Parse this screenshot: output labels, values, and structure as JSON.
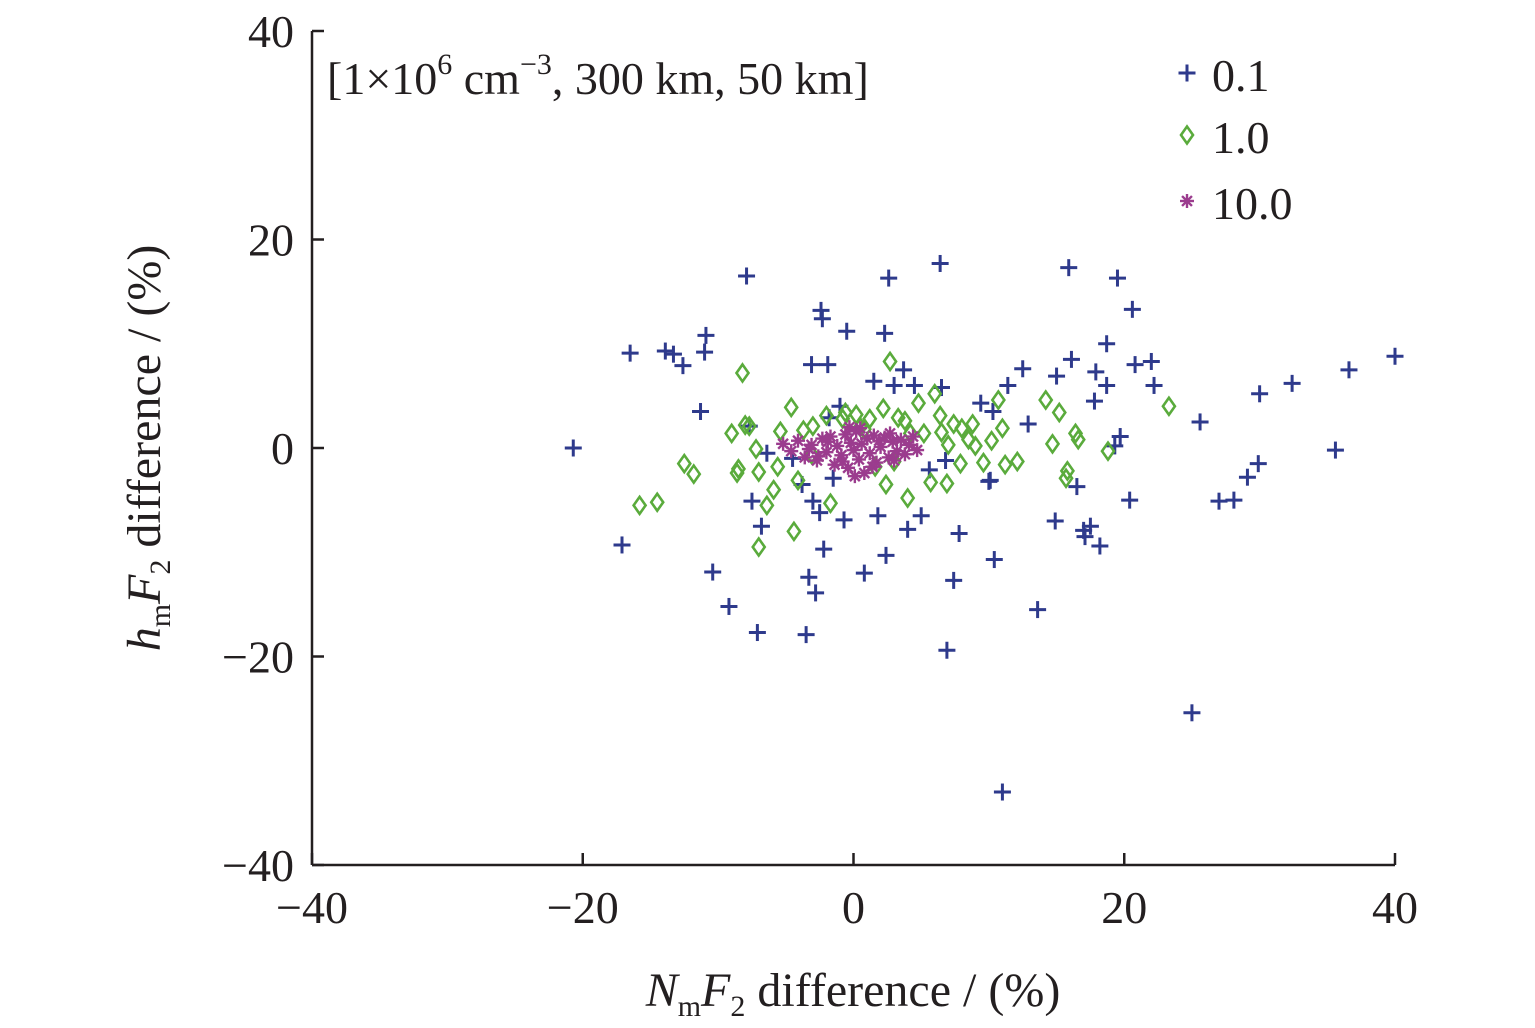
{
  "chart_data": {
    "type": "scatter",
    "annotation": {
      "prefix": "[1×10",
      "sup1": "6",
      "mid": " cm",
      "sup2": "−3",
      "suffix": ", 300 km, 50 km]"
    },
    "xlabel": {
      "N": "N",
      "m": "m",
      "F": "F",
      "sub": "2",
      "rest": " difference / (%)"
    },
    "ylabel": {
      "h": "h",
      "m": "m",
      "F": "F",
      "sub": "2",
      "rest": " difference / (%)"
    },
    "xlim": [
      -40,
      40
    ],
    "ylim": [
      -40,
      40
    ],
    "xticks": [
      -40,
      -20,
      0,
      20,
      40
    ],
    "yticks": [
      -40,
      -20,
      0,
      20,
      40
    ],
    "xtick_labels": [
      "−40",
      "−20",
      "0",
      "20",
      "40"
    ],
    "ytick_labels": [
      "−40",
      "−20",
      "0",
      "20",
      "40"
    ],
    "grid": false,
    "legend_position": "top-right",
    "series": [
      {
        "name": "0.1",
        "marker": "plus",
        "color": "#2e3a8c",
        "points": [
          [
            -20.7,
            0.0
          ],
          [
            -17.1,
            -9.3
          ],
          [
            -16.5,
            9.1
          ],
          [
            -13.9,
            9.3
          ],
          [
            -13.3,
            9.0
          ],
          [
            -12.6,
            7.9
          ],
          [
            -11.3,
            3.5
          ],
          [
            -11.0,
            9.2
          ],
          [
            -10.9,
            10.8
          ],
          [
            -10.4,
            -11.9
          ],
          [
            -9.2,
            -15.2
          ],
          [
            -7.9,
            16.5
          ],
          [
            -7.7,
            2.1
          ],
          [
            -7.5,
            -5.1
          ],
          [
            -7.1,
            -17.7
          ],
          [
            -6.8,
            -7.5
          ],
          [
            -6.4,
            -0.5
          ],
          [
            -4.5,
            -1.0
          ],
          [
            -3.8,
            -3.5
          ],
          [
            -3.5,
            -17.9
          ],
          [
            -3.3,
            -12.4
          ],
          [
            -3.1,
            8.0
          ],
          [
            -3.0,
            -5.1
          ],
          [
            -2.8,
            -13.9
          ],
          [
            -2.5,
            -6.2
          ],
          [
            -2.4,
            13.2
          ],
          [
            -2.3,
            12.4
          ],
          [
            -2.2,
            -9.7
          ],
          [
            -1.9,
            8.0
          ],
          [
            -1.8,
            2.9
          ],
          [
            -1.5,
            -2.9
          ],
          [
            -1.0,
            4.0
          ],
          [
            -0.7,
            -6.9
          ],
          [
            -0.5,
            11.2
          ],
          [
            0.8,
            -12.0
          ],
          [
            1.5,
            6.4
          ],
          [
            1.8,
            -6.5
          ],
          [
            2.3,
            11.0
          ],
          [
            2.4,
            -10.3
          ],
          [
            2.6,
            16.3
          ],
          [
            3.0,
            6.0
          ],
          [
            3.7,
            7.5
          ],
          [
            4.0,
            -7.8
          ],
          [
            4.5,
            6.0
          ],
          [
            5.0,
            -6.5
          ],
          [
            5.6,
            -2.1
          ],
          [
            6.4,
            17.7
          ],
          [
            6.5,
            5.8
          ],
          [
            6.8,
            -1.2
          ],
          [
            6.9,
            -19.4
          ],
          [
            7.4,
            -12.7
          ],
          [
            7.8,
            -8.2
          ],
          [
            9.4,
            4.3
          ],
          [
            10.0,
            -3.2
          ],
          [
            10.1,
            -3.1
          ],
          [
            10.3,
            3.5
          ],
          [
            10.4,
            -10.7
          ],
          [
            11.0,
            -33.0
          ],
          [
            11.4,
            6.0
          ],
          [
            12.5,
            7.6
          ],
          [
            12.9,
            2.3
          ],
          [
            13.6,
            -15.5
          ],
          [
            14.9,
            -7.0
          ],
          [
            15.0,
            6.9
          ],
          [
            15.9,
            17.3
          ],
          [
            16.1,
            8.5
          ],
          [
            16.5,
            -3.7
          ],
          [
            17.0,
            -7.9
          ],
          [
            17.1,
            -8.5
          ],
          [
            17.5,
            -7.5
          ],
          [
            17.8,
            4.5
          ],
          [
            17.9,
            7.3
          ],
          [
            18.2,
            -9.4
          ],
          [
            18.7,
            10.0
          ],
          [
            18.7,
            6.0
          ],
          [
            19.3,
            0.2
          ],
          [
            19.5,
            16.3
          ],
          [
            19.7,
            1.1
          ],
          [
            20.4,
            -5.0
          ],
          [
            20.6,
            13.3
          ],
          [
            20.8,
            8.0
          ],
          [
            22.0,
            8.3
          ],
          [
            22.2,
            6.0
          ],
          [
            25.0,
            -25.4
          ],
          [
            25.6,
            2.5
          ],
          [
            27.0,
            -5.1
          ],
          [
            28.1,
            -5.0
          ],
          [
            29.1,
            -2.8
          ],
          [
            29.9,
            -1.5
          ],
          [
            30.0,
            5.2
          ],
          [
            32.4,
            6.2
          ],
          [
            35.6,
            -0.2
          ],
          [
            36.6,
            7.5
          ],
          [
            40.0,
            8.8
          ]
        ]
      },
      {
        "name": "1.0",
        "marker": "diamond",
        "color": "#5aab3c",
        "points": [
          [
            -15.8,
            -5.5
          ],
          [
            -14.5,
            -5.2
          ],
          [
            -12.5,
            -1.5
          ],
          [
            -11.8,
            -2.5
          ],
          [
            -9.0,
            1.4
          ],
          [
            -8.6,
            -2.4
          ],
          [
            -8.5,
            -2.0
          ],
          [
            -8.2,
            7.2
          ],
          [
            -8.0,
            2.2
          ],
          [
            -7.7,
            2.1
          ],
          [
            -7.2,
            -0.1
          ],
          [
            -7.0,
            -2.3
          ],
          [
            -7.0,
            -9.5
          ],
          [
            -6.4,
            -5.5
          ],
          [
            -5.9,
            -4.0
          ],
          [
            -5.6,
            -1.8
          ],
          [
            -5.4,
            1.6
          ],
          [
            -4.6,
            3.9
          ],
          [
            -4.4,
            -8.0
          ],
          [
            -4.1,
            -3.1
          ],
          [
            -3.7,
            1.7
          ],
          [
            -3.1,
            -0.6
          ],
          [
            -3.0,
            2.1
          ],
          [
            -2.0,
            3.1
          ],
          [
            -1.7,
            -5.3
          ],
          [
            -0.8,
            2.8
          ],
          [
            -0.6,
            3.4
          ],
          [
            0.2,
            3.2
          ],
          [
            0.5,
            2.0
          ],
          [
            0.8,
            1.8
          ],
          [
            1.2,
            2.8
          ],
          [
            1.6,
            -1.8
          ],
          [
            2.2,
            3.8
          ],
          [
            2.4,
            -3.5
          ],
          [
            2.7,
            8.3
          ],
          [
            3.0,
            -1.3
          ],
          [
            3.3,
            2.9
          ],
          [
            3.8,
            2.6
          ],
          [
            4.0,
            -4.8
          ],
          [
            4.2,
            1.4
          ],
          [
            4.8,
            4.3
          ],
          [
            5.2,
            1.4
          ],
          [
            5.7,
            -3.3
          ],
          [
            6.0,
            5.2
          ],
          [
            6.4,
            3.1
          ],
          [
            6.5,
            1.5
          ],
          [
            6.9,
            -3.4
          ],
          [
            7.0,
            0.3
          ],
          [
            7.4,
            2.3
          ],
          [
            7.9,
            -1.5
          ],
          [
            8.0,
            1.9
          ],
          [
            8.5,
            0.8
          ],
          [
            8.8,
            2.3
          ],
          [
            9.0,
            0.2
          ],
          [
            9.6,
            -1.4
          ],
          [
            10.2,
            0.7
          ],
          [
            10.7,
            4.6
          ],
          [
            11.0,
            1.9
          ],
          [
            11.2,
            -1.6
          ],
          [
            12.1,
            -1.3
          ],
          [
            14.2,
            4.6
          ],
          [
            14.7,
            0.4
          ],
          [
            15.2,
            3.4
          ],
          [
            15.7,
            -2.9
          ],
          [
            15.8,
            -2.2
          ],
          [
            16.4,
            1.4
          ],
          [
            16.6,
            0.8
          ],
          [
            18.8,
            -0.3
          ],
          [
            23.3,
            4.0
          ]
        ]
      },
      {
        "name": "10.0",
        "marker": "asterisk",
        "color": "#9b3c8e",
        "points": [
          [
            -5.2,
            0.4
          ],
          [
            -4.6,
            -0.3
          ],
          [
            -4.1,
            0.7
          ],
          [
            -3.6,
            -0.9
          ],
          [
            -3.1,
            0.3
          ],
          [
            -2.7,
            -1.2
          ],
          [
            -2.3,
            0.9
          ],
          [
            -2.0,
            -0.4
          ],
          [
            -1.7,
            1.1
          ],
          [
            -1.4,
            -1.6
          ],
          [
            -1.2,
            0.2
          ],
          [
            -0.9,
            -0.7
          ],
          [
            -0.6,
            1.3
          ],
          [
            -0.4,
            -1.9
          ],
          [
            -0.2,
            0.5
          ],
          [
            0.0,
            -0.2
          ],
          [
            0.2,
            1.6
          ],
          [
            0.4,
            -1.1
          ],
          [
            0.6,
            0.4
          ],
          [
            0.8,
            -2.4
          ],
          [
            1.0,
            0.9
          ],
          [
            1.2,
            -0.5
          ],
          [
            1.5,
            1.2
          ],
          [
            1.7,
            -1.4
          ],
          [
            2.0,
            0.1
          ],
          [
            2.3,
            1.0
          ],
          [
            2.6,
            -0.9
          ],
          [
            2.9,
            0.6
          ],
          [
            3.2,
            -0.3
          ],
          [
            3.5,
            0.8
          ],
          [
            3.8,
            -0.6
          ],
          [
            4.1,
            0.3
          ],
          [
            4.4,
            1.1
          ],
          [
            4.7,
            -0.2
          ],
          [
            -3.3,
            -0.1
          ],
          [
            -1.9,
            0.6
          ],
          [
            -0.8,
            -1.3
          ],
          [
            0.5,
            1.9
          ],
          [
            1.4,
            -1.8
          ],
          [
            2.7,
            1.4
          ],
          [
            -2.6,
            -0.8
          ],
          [
            3.0,
            -1.2
          ],
          [
            0.1,
            -2.7
          ],
          [
            -0.3,
            2.0
          ],
          [
            1.9,
            0.7
          ]
        ]
      }
    ]
  }
}
